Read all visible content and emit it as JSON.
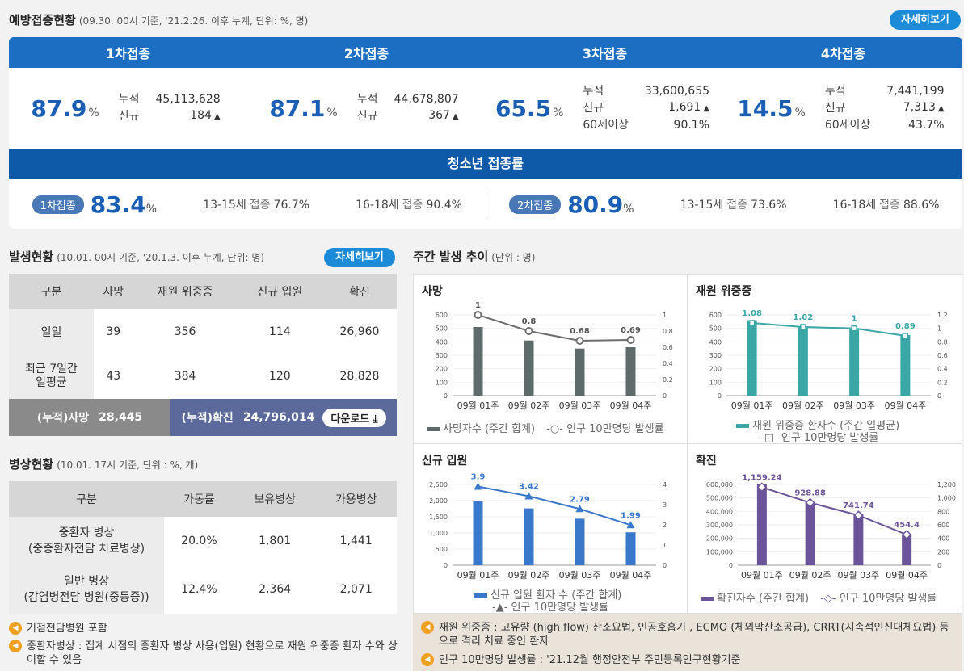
{
  "vaccination": {
    "title": "예방접종현황",
    "subtitle": "(09.30. 00시 기준, '21.2.26. 이후 누계, 단위: %, 명)",
    "detail_button": "자세히보기",
    "doses": [
      {
        "label": "1차접종",
        "pct": "87.9",
        "unit": "%",
        "rows": [
          [
            "누적",
            "45,113,628"
          ],
          [
            "신규",
            "184"
          ]
        ]
      },
      {
        "label": "2차접종",
        "pct": "87.1",
        "unit": "%",
        "rows": [
          [
            "누적",
            "44,678,807"
          ],
          [
            "신규",
            "367"
          ]
        ]
      },
      {
        "label": "3차접종",
        "pct": "65.5",
        "unit": "%",
        "rows": [
          [
            "누적",
            "33,600,655"
          ],
          [
            "신규",
            "1,691"
          ],
          [
            "60세이상",
            "90.1%"
          ]
        ]
      },
      {
        "label": "4차접종",
        "pct": "14.5",
        "unit": "%",
        "rows": [
          [
            "누적",
            "7,441,199"
          ],
          [
            "신규",
            "7,313"
          ],
          [
            "60세이상",
            "43.7%"
          ]
        ]
      }
    ],
    "up_arrow": "▲",
    "teen": {
      "title": "청소년 접종률",
      "first": {
        "badge": "1차접종",
        "pct": "83.4",
        "unit": "%",
        "a_age": "13-15세",
        "a_label": "접종",
        "a_val": "76.7%",
        "b_age": "16-18세",
        "b_label": "접종",
        "b_val": "90.4%"
      },
      "second": {
        "badge": "2차접종",
        "pct": "80.9",
        "unit": "%",
        "a_age": "13-15세",
        "a_label": "접종",
        "a_val": "73.6%",
        "b_age": "16-18세",
        "b_label": "접종",
        "b_val": "88.6%"
      }
    }
  },
  "outbreak": {
    "title": "발생현황",
    "subtitle": "(10.01. 00시 기준, '20.1.3. 이후 누계, 단위: 명)",
    "detail_button": "자세히보기",
    "headers": [
      "구분",
      "사망",
      "재원 위중증",
      "신규 입원",
      "확진"
    ],
    "rows": [
      {
        "label": "일일",
        "values": [
          "39",
          "356",
          "114",
          "26,960"
        ]
      },
      {
        "label": "최근 7일간 일평균",
        "values": [
          "43",
          "384",
          "120",
          "28,828"
        ]
      }
    ],
    "cum_death_label": "(누적)사망",
    "cum_death": "28,445",
    "cum_case_label": "(누적)확진",
    "cum_case": "24,796,014",
    "download": "다운로드"
  },
  "beds": {
    "title": "병상현황",
    "subtitle": "(10.01. 17시 기준, 단위 : %, 개)",
    "headers": [
      "구분",
      "가동률",
      "보유병상",
      "가용병상"
    ],
    "rows": [
      {
        "label1": "중환자 병상",
        "label2": "(중증환자전담 치료병상)",
        "values": [
          "20.0%",
          "1,801",
          "1,441"
        ]
      },
      {
        "label1": "일반 병상",
        "label2": "(감염병전담 병원(중등증))",
        "values": [
          "12.4%",
          "2,364",
          "2,071"
        ]
      }
    ],
    "notes": [
      "거점전담병원 포함",
      "중환자병상 : 집계 시점의 중환자 병상 사용(입원) 현황으로 재원 위중증 환자 수와 상이할 수 있음"
    ]
  },
  "weekly": {
    "title": "주간 발생 추이",
    "subtitle": "(단위 : 명)",
    "notes": [
      "재원 위중증 : 고유량 (high flow) 산소요법, 인공호흡기 , ECMO (체외막산소공급), CRRT(지속적인신대체요법) 등으로 격리 치료 중인 환자",
      "인구 10만명당 발생률 : '21.12월 행정안전부 주민등록인구현황기준"
    ]
  },
  "colors": {
    "death": "#5f6a6a",
    "severe": "#3aa6a6",
    "admit": "#3a78cc",
    "case": "#6b5499",
    "line": "#6e6e6e"
  },
  "chart_data": [
    {
      "type": "bar",
      "id": "death",
      "title": "사망",
      "categories": [
        "09월 01주",
        "09월 02주",
        "09월 03주",
        "09월 04주"
      ],
      "series": [
        {
          "name": "사망자수 (주간 합계)",
          "values": [
            510,
            410,
            350,
            360
          ]
        },
        {
          "name": "인구 10만명당 발생률",
          "values": [
            1,
            0.8,
            0.68,
            0.69
          ]
        }
      ],
      "ylim": [
        0,
        600
      ],
      "yticks": [
        "0",
        "100",
        "200",
        "300",
        "400",
        "500",
        "600"
      ],
      "y2lim": [
        0,
        1
      ],
      "y2ticks": [
        "0",
        "0.2",
        "0.4",
        "0.6",
        "0.8",
        "1"
      ],
      "labels": [
        "1",
        "0.8",
        "0.68",
        "0.69"
      ]
    },
    {
      "type": "bar",
      "id": "severe",
      "title": "재원 위중증",
      "categories": [
        "09월 01주",
        "09월 02주",
        "09월 03주",
        "09월 04주"
      ],
      "series": [
        {
          "name": "재원 위중증 환자수 (주간 일평균)",
          "values": [
            560,
            510,
            500,
            450
          ]
        },
        {
          "name": "인구 10만명당 발생률",
          "values": [
            1.08,
            1.02,
            1,
            0.89
          ]
        }
      ],
      "ylim": [
        0,
        600
      ],
      "yticks": [
        "0",
        "100",
        "200",
        "300",
        "400",
        "500",
        "600"
      ],
      "y2lim": [
        0,
        1.2
      ],
      "y2ticks": [
        "0",
        "0.2",
        "0.4",
        "0.6",
        "0.8",
        "1",
        "1.2"
      ],
      "labels": [
        "1.08",
        "1.02",
        "1",
        "0.89"
      ]
    },
    {
      "type": "bar",
      "id": "admit",
      "title": "신규 입원",
      "categories": [
        "09월 01주",
        "09월 02주",
        "09월 03주",
        "09월 04주"
      ],
      "series": [
        {
          "name": "신규 입원 환자 수 (주간 합계)",
          "values": [
            2000,
            1760,
            1440,
            1020
          ]
        },
        {
          "name": "인구 10만명당 발생률",
          "values": [
            3.9,
            3.42,
            2.79,
            1.99
          ]
        }
      ],
      "ylim": [
        0,
        2500
      ],
      "yticks": [
        "0",
        "500",
        "1,000",
        "1,500",
        "2,000",
        "2,500"
      ],
      "y2lim": [
        0,
        4
      ],
      "y2ticks": [
        "0",
        "1",
        "2",
        "3",
        "4"
      ],
      "labels": [
        "3.9",
        "3.42",
        "2.79",
        "1.99"
      ]
    },
    {
      "type": "bar",
      "id": "case",
      "title": "확진",
      "categories": [
        "09월 01주",
        "09월 02주",
        "09월 03주",
        "09월 04주"
      ],
      "series": [
        {
          "name": "확진자수 (주간 합계)",
          "values": [
            600000,
            470000,
            380000,
            230000
          ]
        },
        {
          "name": "인구 10만명당 발생률",
          "values": [
            1159.24,
            928.88,
            741.74,
            454.4
          ]
        }
      ],
      "ylim": [
        0,
        600000
      ],
      "yticks": [
        "0",
        "100,000",
        "200,000",
        "300,000",
        "400,000",
        "500,000",
        "600,000"
      ],
      "y2lim": [
        0,
        1200
      ],
      "y2ticks": [
        "0",
        "200",
        "400",
        "600",
        "800",
        "1,000",
        "1,200"
      ],
      "labels": [
        "1,159.24",
        "928.88",
        "741.74",
        "454.4"
      ]
    }
  ]
}
